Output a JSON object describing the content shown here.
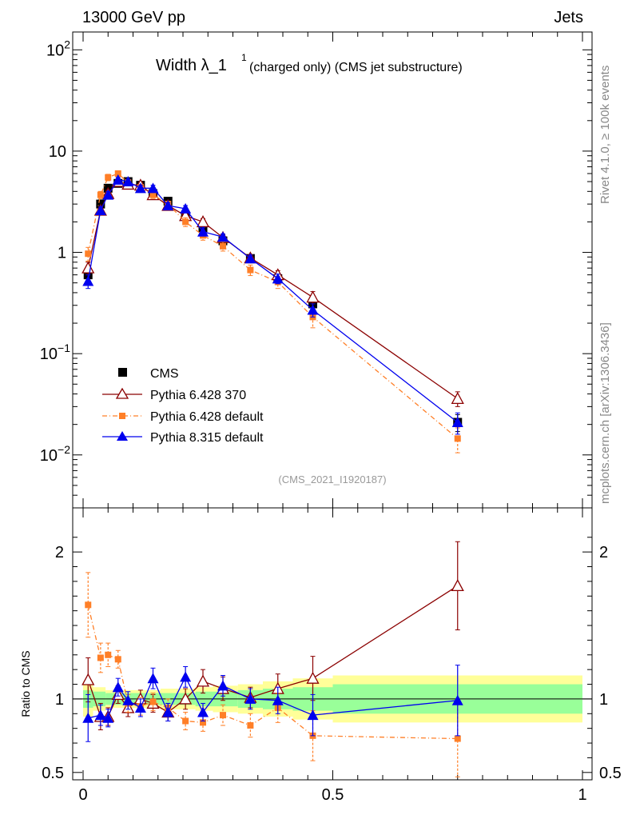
{
  "header": {
    "left": "13000 GeV pp",
    "right": "Jets"
  },
  "side_labels": {
    "top": "Rivet 4.1.0, ≥ 100k events",
    "bottom": "mcplots.cern.ch [arXiv:1306.3436]"
  },
  "plot_title": {
    "main": "Width λ_1",
    "sup": "1",
    "sub": "(charged only) (CMS jet substructure)"
  },
  "analysis_id": "(CMS_2021_I1920187)",
  "ratio_ylabel": "Ratio to CMS",
  "colors": {
    "cms": "#000000",
    "p6_370": "#8b0000",
    "p6_default": "#ff7f27",
    "p8_default": "#0000ee",
    "band_outer": "#ffff99",
    "band_inner": "#99ff99"
  },
  "chart_data": [
    {
      "type": "line",
      "scale": "log",
      "title": "Width λ_1^1 (charged only) (CMS jet substructure)",
      "xlim": [
        0,
        1
      ],
      "ylim": [
        0.003,
        150
      ],
      "y_ticks": [
        {
          "value": 0.01,
          "base": "10",
          "exp": "−2"
        },
        {
          "value": 0.1,
          "base": "10",
          "exp": "−1"
        },
        {
          "value": 1,
          "base": "1",
          "exp": ""
        },
        {
          "value": 10,
          "base": "10",
          "exp": ""
        },
        {
          "value": 100,
          "base": "10",
          "exp": "2"
        }
      ],
      "x": [
        0.01,
        0.035,
        0.05,
        0.07,
        0.09,
        0.115,
        0.14,
        0.17,
        0.205,
        0.24,
        0.28,
        0.335,
        0.39,
        0.46,
        0.75
      ],
      "series": [
        {
          "name": "CMS",
          "style": "data",
          "values": [
            0.6,
            3.0,
            4.3,
            4.8,
            5.0,
            4.6,
            3.8,
            3.2,
            2.3,
            1.75,
            1.3,
            0.87,
            0.55,
            0.31,
            0.021
          ],
          "errors": [
            0.08,
            0.3,
            0.4,
            0.3,
            0.3,
            0.3,
            0.3,
            0.2,
            0.2,
            0.15,
            0.1,
            0.06,
            0.05,
            0.04,
            0.004
          ]
        },
        {
          "name": "Pythia 6.428 370",
          "style": "open-triangle-solid",
          "values": [
            0.7,
            2.6,
            3.8,
            5.0,
            4.7,
            4.6,
            3.7,
            2.9,
            2.3,
            2.0,
            1.4,
            0.88,
            0.6,
            0.36,
            0.036
          ],
          "errors": [
            0.1,
            0.2,
            0.3,
            0.3,
            0.3,
            0.3,
            0.2,
            0.2,
            0.2,
            0.15,
            0.1,
            0.07,
            0.06,
            0.05,
            0.006
          ]
        },
        {
          "name": "Pythia 6.428 default",
          "style": "square-dashdot",
          "values": [
            0.97,
            3.7,
            5.5,
            6.0,
            4.9,
            4.4,
            3.7,
            3.0,
            2.0,
            1.47,
            1.15,
            0.67,
            0.51,
            0.23,
            0.0145
          ],
          "errors": [
            0.15,
            0.3,
            0.4,
            0.4,
            0.3,
            0.3,
            0.3,
            0.2,
            0.2,
            0.15,
            0.12,
            0.08,
            0.07,
            0.05,
            0.004
          ]
        },
        {
          "name": "Pythia 8.315 default",
          "style": "filled-triangle-solid",
          "values": [
            0.52,
            2.6,
            3.7,
            5.2,
            5.0,
            4.3,
            4.3,
            2.9,
            2.7,
            1.6,
            1.42,
            0.87,
            0.55,
            0.27,
            0.021
          ],
          "errors": [
            0.08,
            0.2,
            0.3,
            0.3,
            0.3,
            0.3,
            0.3,
            0.2,
            0.2,
            0.15,
            0.1,
            0.07,
            0.06,
            0.04,
            0.005
          ]
        }
      ],
      "legend": [
        "CMS",
        "Pythia 6.428 370",
        "Pythia 6.428 default",
        "Pythia 8.315 default"
      ],
      "legend_position": "lower-left"
    },
    {
      "type": "line",
      "title": "Ratio to CMS",
      "ylabel": "Ratio to CMS",
      "xlim": [
        0,
        1
      ],
      "ylim": [
        0.45,
        2.3
      ],
      "x_ticks": [
        {
          "value": 0,
          "label": "0"
        },
        {
          "value": 0.5,
          "label": "0.5"
        },
        {
          "value": 1,
          "label": "1"
        }
      ],
      "y_ticks": [
        {
          "value": 0.5,
          "label": "0.5"
        },
        {
          "value": 1,
          "label": "1"
        },
        {
          "value": 2,
          "label": "2"
        }
      ],
      "band_edges": [
        0,
        0.02,
        0.045,
        0.06,
        0.08,
        0.1,
        0.13,
        0.155,
        0.185,
        0.225,
        0.26,
        0.31,
        0.36,
        0.42,
        0.5,
        1.0
      ],
      "band_outer": [
        0.12,
        0.08,
        0.06,
        0.06,
        0.06,
        0.06,
        0.06,
        0.07,
        0.07,
        0.08,
        0.09,
        0.1,
        0.12,
        0.14,
        0.16
      ],
      "band_inner": [
        0.06,
        0.05,
        0.04,
        0.04,
        0.04,
        0.04,
        0.04,
        0.04,
        0.04,
        0.05,
        0.05,
        0.06,
        0.07,
        0.08,
        0.1
      ],
      "x": [
        0.01,
        0.035,
        0.05,
        0.07,
        0.09,
        0.115,
        0.14,
        0.17,
        0.205,
        0.24,
        0.28,
        0.335,
        0.39,
        0.46,
        0.75
      ],
      "series": [
        {
          "name": "Pythia 6.428 370",
          "values": [
            1.13,
            0.88,
            0.88,
            1.03,
            0.94,
            1.0,
            0.97,
            0.91,
            1.0,
            1.12,
            1.07,
            1.01,
            1.07,
            1.14,
            1.77
          ],
          "errors": [
            0.15,
            0.09,
            0.06,
            0.06,
            0.06,
            0.06,
            0.06,
            0.06,
            0.07,
            0.08,
            0.08,
            0.07,
            0.1,
            0.15,
            0.3
          ]
        },
        {
          "name": "Pythia 6.428 default",
          "values": [
            1.64,
            1.28,
            1.3,
            1.27,
            0.97,
            0.95,
            0.98,
            0.94,
            0.85,
            0.84,
            0.89,
            0.82,
            0.94,
            0.75,
            0.73
          ],
          "errors": [
            0.22,
            0.1,
            0.08,
            0.06,
            0.06,
            0.06,
            0.06,
            0.06,
            0.06,
            0.06,
            0.07,
            0.08,
            0.1,
            0.17,
            0.26
          ]
        },
        {
          "name": "Pythia 8.315 default",
          "values": [
            0.87,
            0.89,
            0.87,
            1.08,
            0.99,
            0.94,
            1.14,
            0.91,
            1.15,
            0.91,
            1.09,
            1.0,
            0.99,
            0.89,
            0.99
          ],
          "errors": [
            0.16,
            0.07,
            0.06,
            0.06,
            0.06,
            0.06,
            0.07,
            0.06,
            0.07,
            0.06,
            0.07,
            0.07,
            0.09,
            0.14,
            0.24
          ]
        }
      ]
    }
  ]
}
